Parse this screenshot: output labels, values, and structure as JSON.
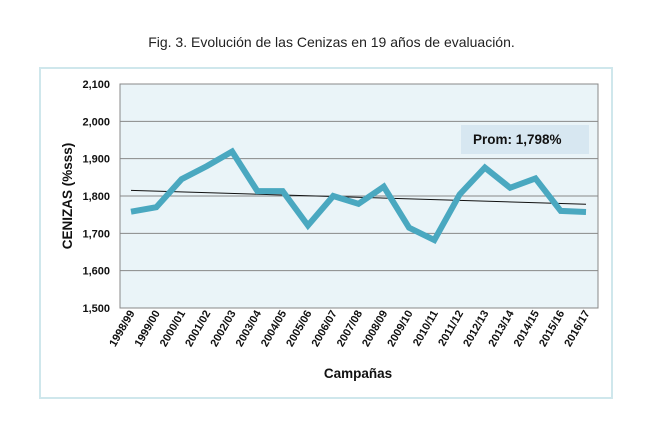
{
  "figure_title": "Fig. 3. Evolución de las Cenizas en 19 años de evaluación.",
  "chart_data": {
    "type": "line",
    "title": "Fig. 3. Evolución de las Cenizas en 19 años de evaluación.",
    "xlabel": "Campañas",
    "ylabel": "CENIZAS (%sss)",
    "categories": [
      "1998/99",
      "1999/00",
      "2000/01",
      "2001/02",
      "2002/03",
      "2003/04",
      "2004/05",
      "2005/06",
      "2006/07",
      "2007/08",
      "2008/09",
      "2009/10",
      "2010/11",
      "2011/12",
      "2012/13",
      "2013/14",
      "2014/15",
      "2015/16",
      "2016/17"
    ],
    "series": [
      {
        "values": [
          1.758,
          1.77,
          1.845,
          1.88,
          1.919,
          1.813,
          1.813,
          1.721,
          1.8,
          1.779,
          1.825,
          1.715,
          1.682,
          1.804,
          1.876,
          1.822,
          1.847,
          1.76,
          1.757
        ],
        "color": "#4aa8c0"
      }
    ],
    "trendline": {
      "type": "linear",
      "start": 1.815,
      "end": 1.778,
      "color": "#111111"
    },
    "ylim": [
      1.5,
      2.1
    ],
    "yticks": [
      1.5,
      1.6,
      1.7,
      1.8,
      1.9,
      2.0,
      2.1
    ],
    "ytick_labels": [
      "1,500",
      "1,600",
      "1,700",
      "1,800",
      "1,900",
      "2,000",
      "2,100"
    ],
    "grid": "horizontal",
    "annotation": "Prom: 1,798%",
    "plot_background": "#eaf4f8",
    "frame_color": "#cfe7ec"
  }
}
